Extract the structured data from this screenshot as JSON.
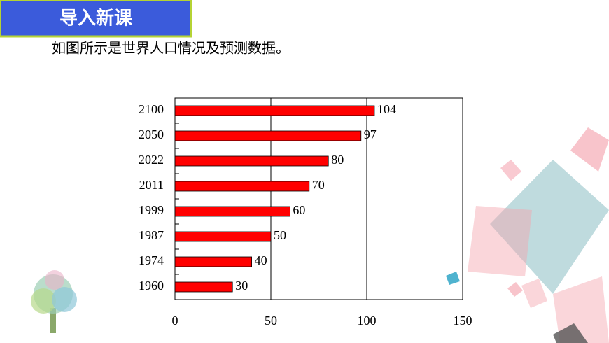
{
  "header": {
    "title": "导入新课",
    "text": "如图所示是世界人口情况及预测数据。"
  },
  "chart_data": {
    "type": "bar",
    "orientation": "horizontal",
    "categories": [
      "2100",
      "2050",
      "2022",
      "2011",
      "1999",
      "1987",
      "1974",
      "1960"
    ],
    "values": [
      104,
      97,
      80,
      70,
      60,
      50,
      40,
      30
    ],
    "color": "#ff0000",
    "xlim": [
      0,
      150
    ],
    "xticks": [
      0,
      50,
      100,
      150
    ],
    "grid": true
  }
}
